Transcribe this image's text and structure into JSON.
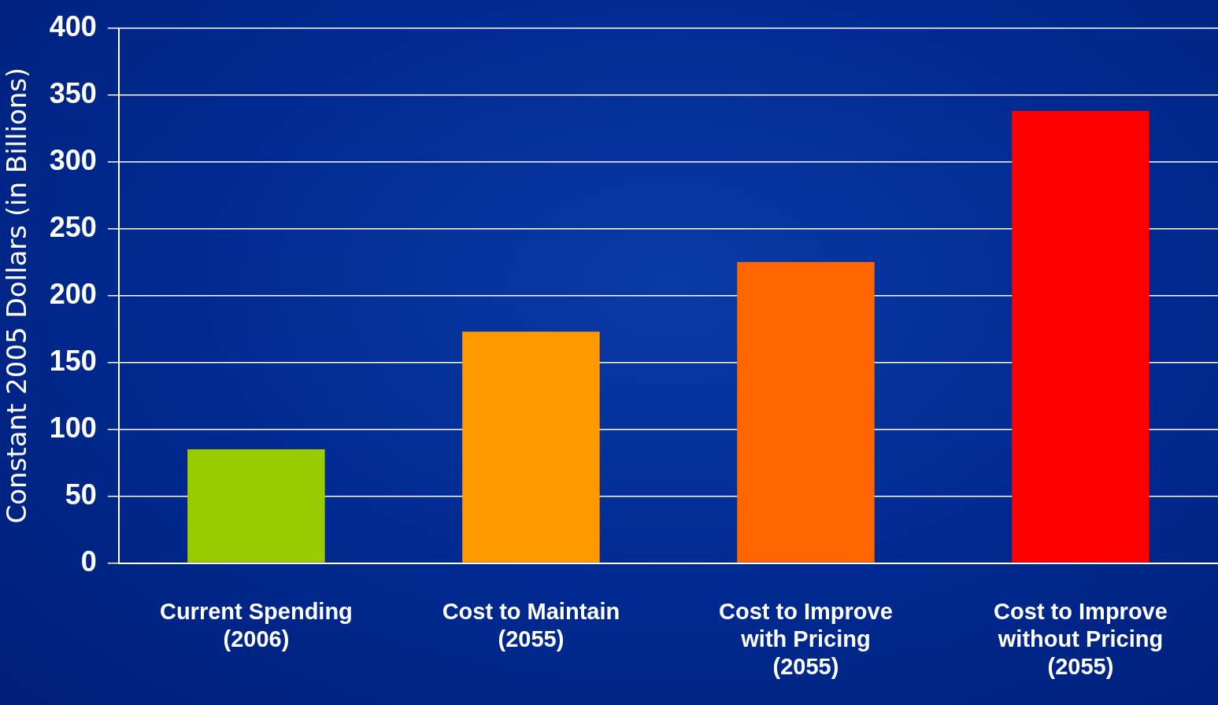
{
  "chart_data": {
    "type": "bar",
    "ylabel": "Constant 2005 Dollars (in Billions)",
    "categories": [
      "Current Spending\n(2006)",
      "Cost to Maintain\n(2055)",
      "Cost to Improve\nwith Pricing\n(2055)",
      "Cost to Improve\nwithout Pricing\n(2055)"
    ],
    "values": [
      85,
      173,
      225,
      338
    ],
    "colors": [
      "#99cc00",
      "#ff9900",
      "#ff6600",
      "#ff0000"
    ],
    "ylim": [
      0,
      400
    ],
    "yticks": [
      0,
      50,
      100,
      150,
      200,
      250,
      300,
      350,
      400
    ],
    "grid": "y",
    "legend": false
  }
}
